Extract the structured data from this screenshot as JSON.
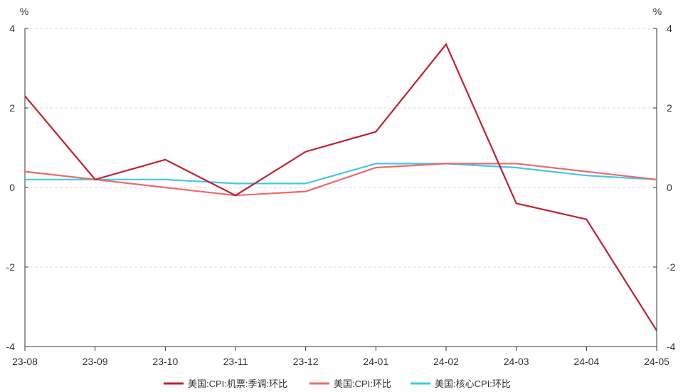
{
  "chart_data": {
    "type": "line",
    "categories": [
      "23-08",
      "23-09",
      "23-10",
      "23-11",
      "23-12",
      "24-01",
      "24-02",
      "24-03",
      "24-04",
      "24-05"
    ],
    "series": [
      {
        "name": "美国:CPI:机票:季调:环比",
        "color": "#c0202e",
        "values": [
          2.3,
          0.2,
          0.7,
          -0.2,
          0.9,
          1.4,
          3.6,
          -0.4,
          -0.8,
          -3.6
        ]
      },
      {
        "name": "美国:CPI:环比",
        "color": "#ee6a6a",
        "values": [
          0.4,
          0.2,
          0.0,
          -0.2,
          -0.1,
          0.5,
          0.6,
          0.6,
          0.4,
          0.2
        ]
      },
      {
        "name": "美国:核心CPI:环比",
        "color": "#3ec8ea",
        "values": [
          0.2,
          0.2,
          0.2,
          0.1,
          0.1,
          0.6,
          0.6,
          0.5,
          0.3,
          0.2
        ]
      }
    ],
    "ylim": [
      -4,
      4
    ],
    "y_ticks": [
      "-4",
      "-2",
      "0",
      "2",
      "4"
    ],
    "y_unit_left": "%",
    "y_unit_right": "%",
    "grid": "horizontal dashed",
    "legend_position": "bottom"
  }
}
